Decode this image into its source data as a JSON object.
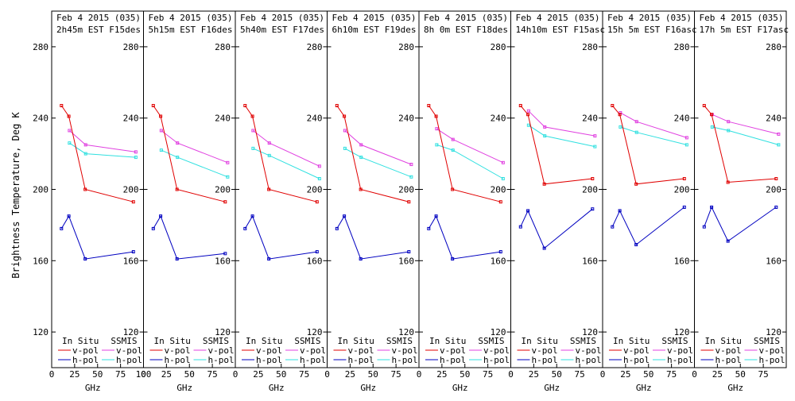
{
  "ylabel": "Brightness Temperature, Deg K",
  "xlabel": "GHz",
  "legend": {
    "insitu_header": "In Situ",
    "ssmis_header": "SSMIS",
    "v_pol": "v-pol",
    "h_pol": "h-pol"
  },
  "x_tick_labels": [
    "0",
    "25",
    "50",
    "75"
  ],
  "first_panel_last_x_label": "100",
  "y_tick_labels": [
    "120",
    "160",
    "200",
    "240",
    "280"
  ],
  "colors": {
    "insitu_v": "#e00000",
    "insitu_h": "#0000c0",
    "ssmis_v": "#e040e0",
    "ssmis_h": "#30e0e0"
  },
  "chart_data": {
    "type": "line",
    "xlim": [
      0,
      100
    ],
    "ylim": [
      100,
      300
    ],
    "x_ticks": [
      0,
      25,
      50,
      75,
      100
    ],
    "y_ticks": [
      120,
      160,
      200,
      240,
      280
    ],
    "panels": [
      {
        "title1": "Feb 4 2015 (035)",
        "title2": "2h45m EST F15des",
        "insitu_x": [
          10.65,
          18.7,
          36.5,
          89
        ],
        "insitu_v": [
          247,
          241,
          200,
          193
        ],
        "insitu_h": [
          178,
          185,
          161,
          165
        ],
        "ssmis_x": [
          19.35,
          37,
          91.65
        ],
        "ssmis_v": [
          233,
          225,
          221
        ],
        "ssmis_h": [
          226,
          220,
          218
        ]
      },
      {
        "title1": "Feb 4 2015 (035)",
        "title2": "5h15m EST F16des",
        "insitu_x": [
          10.65,
          18.7,
          36.5,
          89
        ],
        "insitu_v": [
          247,
          241,
          200,
          193
        ],
        "insitu_h": [
          178,
          185,
          161,
          164
        ],
        "ssmis_x": [
          19.35,
          37,
          91.65
        ],
        "ssmis_v": [
          233,
          226,
          215
        ],
        "ssmis_h": [
          222,
          218,
          207
        ]
      },
      {
        "title1": "Feb 4 2015 (035)",
        "title2": "5h40m EST F17des",
        "insitu_x": [
          10.65,
          18.7,
          36.5,
          89
        ],
        "insitu_v": [
          247,
          241,
          200,
          193
        ],
        "insitu_h": [
          178,
          185,
          161,
          165
        ],
        "ssmis_x": [
          19.35,
          37,
          91.65
        ],
        "ssmis_v": [
          233,
          226,
          213
        ],
        "ssmis_h": [
          223,
          219,
          206
        ]
      },
      {
        "title1": "Feb 4 2015 (035)",
        "title2": "6h10m EST F19des",
        "insitu_x": [
          10.65,
          18.7,
          36.5,
          89
        ],
        "insitu_v": [
          247,
          241,
          200,
          193
        ],
        "insitu_h": [
          178,
          185,
          161,
          165
        ],
        "ssmis_x": [
          19.35,
          37,
          91.65
        ],
        "ssmis_v": [
          233,
          225,
          214
        ],
        "ssmis_h": [
          223,
          218,
          207
        ]
      },
      {
        "title1": "Feb 4 2015 (035)",
        "title2": "8h 0m EST F18des",
        "insitu_x": [
          10.65,
          18.7,
          36.5,
          89
        ],
        "insitu_v": [
          247,
          241,
          200,
          193
        ],
        "insitu_h": [
          178,
          185,
          161,
          165
        ],
        "ssmis_x": [
          19.35,
          37,
          91.65
        ],
        "ssmis_v": [
          234,
          228,
          215
        ],
        "ssmis_h": [
          225,
          222,
          206
        ]
      },
      {
        "title1": "Feb 4 2015 (035)",
        "title2": "14h10m EST F15asc",
        "insitu_x": [
          10.65,
          18.7,
          36.5,
          89
        ],
        "insitu_v": [
          247,
          242,
          203,
          206
        ],
        "insitu_h": [
          179,
          188,
          167,
          189
        ],
        "ssmis_x": [
          19.35,
          37,
          91.65
        ],
        "ssmis_v": [
          244,
          235,
          230
        ],
        "ssmis_h": [
          236,
          230,
          224
        ]
      },
      {
        "title1": "Feb 4 2015 (035)",
        "title2": "15h 5m EST F16asc",
        "insitu_x": [
          10.65,
          18.7,
          36.5,
          89
        ],
        "insitu_v": [
          247,
          242,
          203,
          206
        ],
        "insitu_h": [
          179,
          188,
          169,
          190
        ],
        "ssmis_x": [
          19.35,
          37,
          91.65
        ],
        "ssmis_v": [
          243,
          238,
          229
        ],
        "ssmis_h": [
          235,
          232,
          225
        ]
      },
      {
        "title1": "Feb 4 2015 (035)",
        "title2": "17h 5m EST F17asc",
        "insitu_x": [
          10.65,
          18.7,
          36.5,
          89
        ],
        "insitu_v": [
          247,
          242,
          204,
          206
        ],
        "insitu_h": [
          179,
          190,
          171,
          190
        ],
        "ssmis_x": [
          19.35,
          37,
          91.65
        ],
        "ssmis_v": [
          242,
          238,
          231
        ],
        "ssmis_h": [
          235,
          233,
          225
        ]
      }
    ]
  }
}
